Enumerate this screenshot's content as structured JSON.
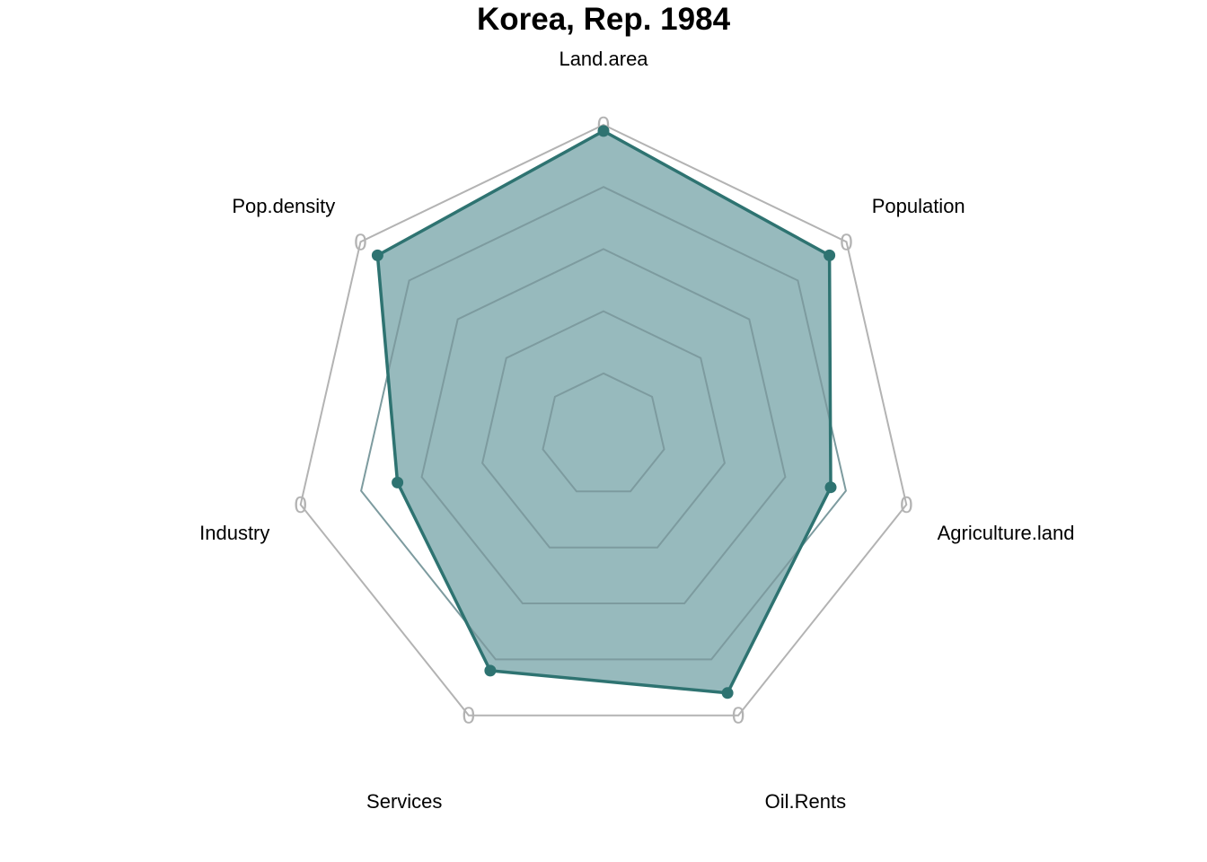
{
  "chart_data": {
    "type": "radar",
    "title": "Korea, Rep. 1984",
    "axes": [
      "Land.area",
      "Population",
      "Agriculture.land",
      "Oil.Rents",
      "Services",
      "Industry",
      "Pop.density"
    ],
    "axis_tick_labels": [
      "0",
      "0",
      "0",
      "0",
      "0",
      "0",
      "0"
    ],
    "rlim": [
      0,
      1
    ],
    "grid_levels": [
      0.2,
      0.4,
      0.6,
      0.8,
      1.0
    ],
    "grid": true,
    "legend": "none",
    "series": [
      {
        "values": [
          0.98,
          0.93,
          0.75,
          0.92,
          0.84,
          0.68,
          0.93
        ],
        "color": "#2e7371",
        "fill": "#6f9fa3"
      }
    ],
    "colors": {
      "outer_ring": "#b3b3b3",
      "inner_grid": "#7d9b9f",
      "series_line": "#2e7371",
      "series_fill": "#6f9fa3"
    }
  }
}
